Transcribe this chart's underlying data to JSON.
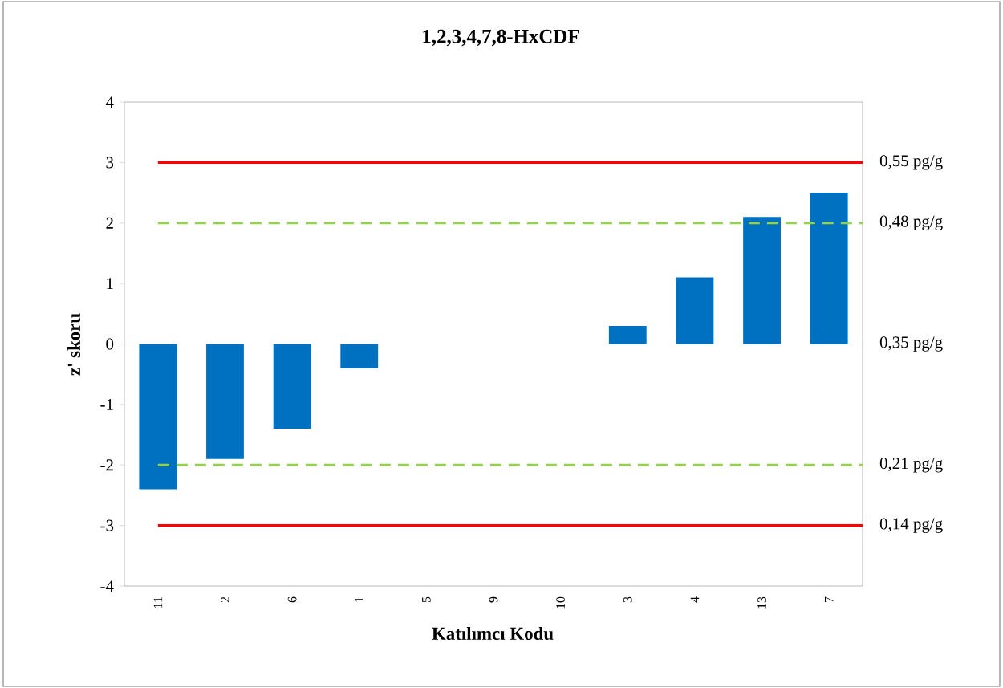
{
  "chart_data": {
    "type": "bar",
    "title": "1,2,3,4,7,8-HxCDF",
    "xlabel": "Katılımcı Kodu",
    "ylabel": "z' skoru",
    "categories": [
      "11",
      "2",
      "6",
      "1",
      "5",
      "9",
      "10",
      "3",
      "4",
      "13",
      "7"
    ],
    "values": [
      -2.4,
      -1.9,
      -1.4,
      -0.4,
      0,
      0,
      0,
      0.3,
      1.1,
      2.1,
      2.5
    ],
    "color": "#0070c0",
    "ylim": [
      -4,
      4
    ],
    "yticks": [
      -4,
      -3,
      -2,
      -1,
      0,
      1,
      2,
      3,
      4
    ],
    "ref_lines": [
      {
        "axis": "y",
        "value": 3,
        "label": "0,55 pg/g",
        "color": "#ff0000",
        "line_style": "solid"
      },
      {
        "axis": "y",
        "value": 2,
        "label": "0,48 pg/g",
        "color": "#92d050",
        "line_style": "dashed"
      },
      {
        "axis": "y",
        "value": -2,
        "label": "0,21 pg/g",
        "color": "#92d050",
        "line_style": "dashed"
      },
      {
        "axis": "y",
        "value": -3,
        "label": "0,14 pg/g",
        "color": "#ff0000",
        "line_style": "solid"
      }
    ],
    "annotations": [
      "0,35 pg/g"
    ],
    "grid": false
  }
}
